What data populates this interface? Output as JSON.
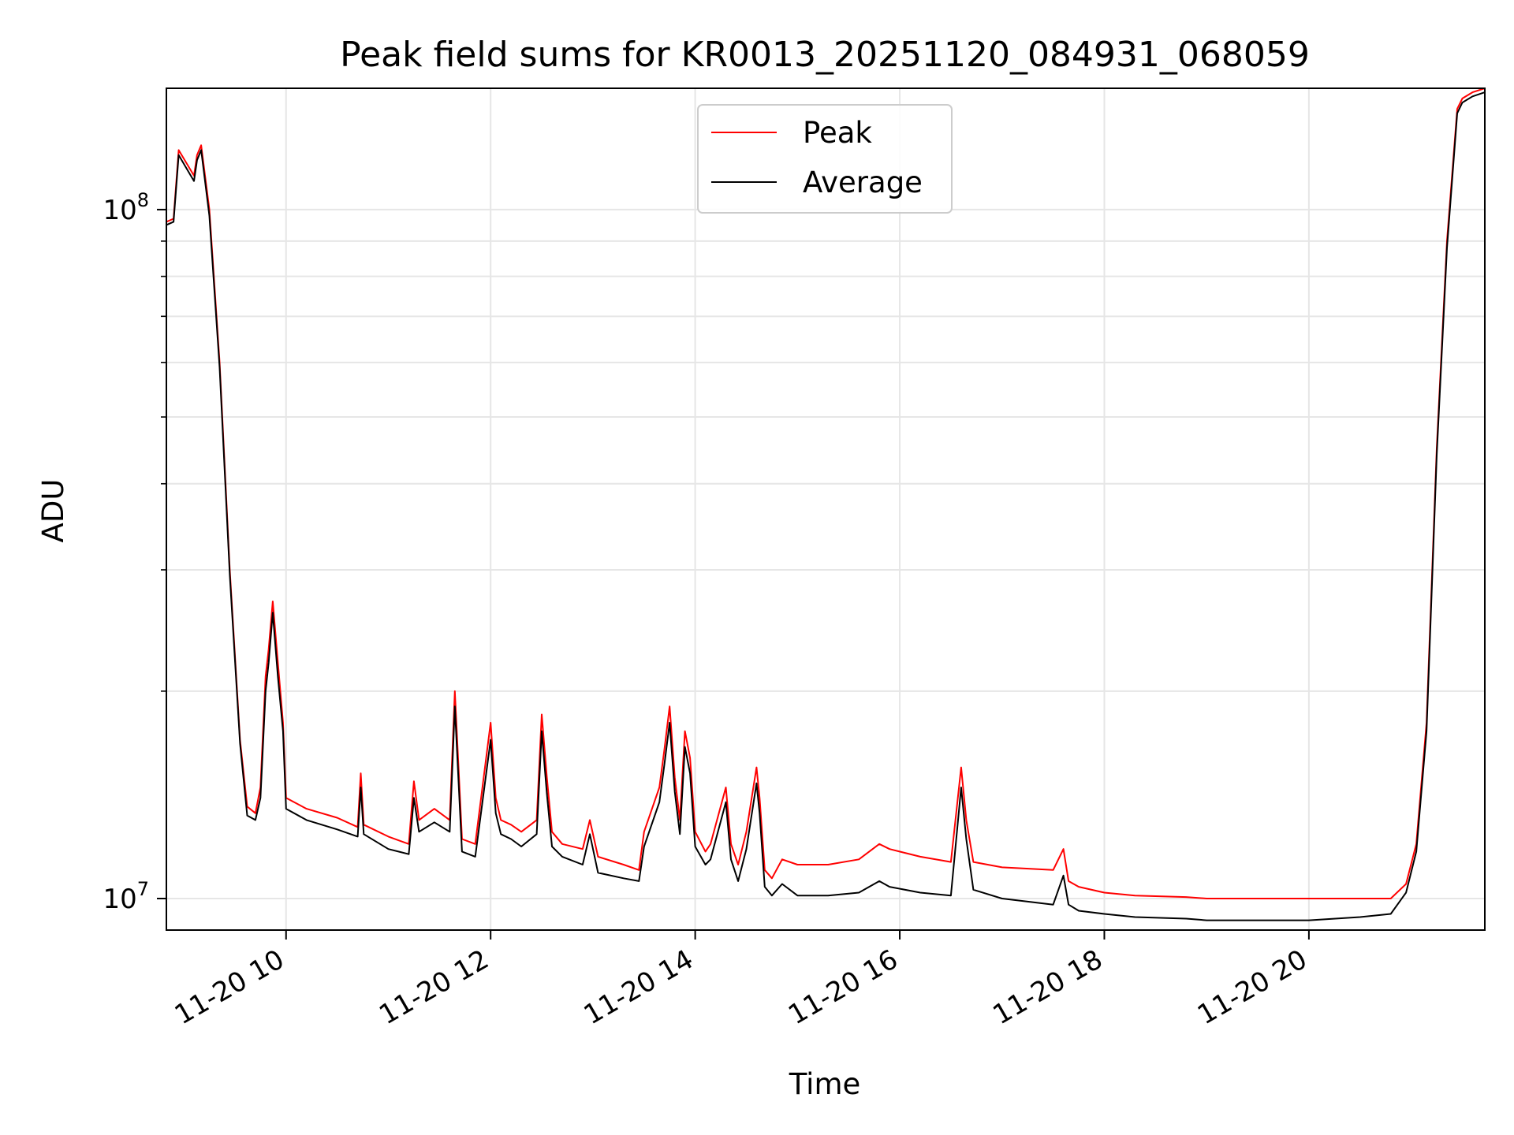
{
  "chart_data": {
    "type": "line",
    "title": "Peak field sums for KR0013_20251120_084931_068059",
    "xlabel": "Time",
    "ylabel": "ADU",
    "yscale": "log",
    "ylim": [
      9000000,
      150000000
    ],
    "xlim_hours": [
      8.83,
      21.72
    ],
    "grid": true,
    "legend_position": "top-center",
    "x_ticks": [
      {
        "hour": 10,
        "label": "11-20 10"
      },
      {
        "hour": 12,
        "label": "11-20 12"
      },
      {
        "hour": 14,
        "label": "11-20 14"
      },
      {
        "hour": 16,
        "label": "11-20 16"
      },
      {
        "hour": 18,
        "label": "11-20 18"
      },
      {
        "hour": 20,
        "label": "11-20 20"
      }
    ],
    "y_major_ticks": [
      {
        "value": 10000000,
        "base": "10",
        "exp": "7"
      },
      {
        "value": 100000000,
        "base": "10",
        "exp": "8"
      }
    ],
    "y_minor_ticks": [
      20000000,
      30000000,
      40000000,
      50000000,
      60000000,
      70000000,
      80000000,
      90000000
    ],
    "series": [
      {
        "name": "Peak",
        "color": "#ff0000",
        "x_hours": [
          8.83,
          8.9,
          8.95,
          9.1,
          9.13,
          9.17,
          9.25,
          9.35,
          9.45,
          9.55,
          9.62,
          9.7,
          9.75,
          9.8,
          9.83,
          9.87,
          9.92,
          9.97,
          10.0,
          10.2,
          10.5,
          10.7,
          10.73,
          10.76,
          11.0,
          11.2,
          11.25,
          11.3,
          11.45,
          11.6,
          11.65,
          11.72,
          11.85,
          12.0,
          12.05,
          12.1,
          12.2,
          12.3,
          12.45,
          12.5,
          12.55,
          12.6,
          12.7,
          12.9,
          12.97,
          13.05,
          13.3,
          13.45,
          13.5,
          13.65,
          13.7,
          13.75,
          13.8,
          13.85,
          13.9,
          13.95,
          14.0,
          14.1,
          14.15,
          14.3,
          14.35,
          14.42,
          14.5,
          14.6,
          14.63,
          14.68,
          14.75,
          14.85,
          15.0,
          15.3,
          15.6,
          15.8,
          15.9,
          16.2,
          16.5,
          16.6,
          16.65,
          16.72,
          17.0,
          17.5,
          17.6,
          17.65,
          17.75,
          18.0,
          18.3,
          18.8,
          19.0,
          19.5,
          20.0,
          20.5,
          20.8,
          20.95,
          21.05,
          21.15,
          21.25,
          21.35,
          21.45,
          21.5,
          21.6,
          21.72
        ],
        "values": [
          96000000,
          97000000,
          122000000,
          112000000,
          120000000,
          124000000,
          100000000,
          60000000,
          30000000,
          17000000,
          13600000,
          13300000,
          14500000,
          21000000,
          23000000,
          27000000,
          22000000,
          18000000,
          14000000,
          13500000,
          13100000,
          12700000,
          15200000,
          12800000,
          12300000,
          12000000,
          14800000,
          13000000,
          13500000,
          13000000,
          20000000,
          12200000,
          12000000,
          18000000,
          14000000,
          13000000,
          12800000,
          12500000,
          13000000,
          18500000,
          15000000,
          12500000,
          12000000,
          11800000,
          13000000,
          11500000,
          11200000,
          11000000,
          12500000,
          14500000,
          16500000,
          19000000,
          15000000,
          13000000,
          17500000,
          16000000,
          12500000,
          11700000,
          12000000,
          14500000,
          12000000,
          11200000,
          12500000,
          15500000,
          14000000,
          11000000,
          10700000,
          11400000,
          11200000,
          11200000,
          11400000,
          12000000,
          11800000,
          11500000,
          11300000,
          15500000,
          13000000,
          11300000,
          11100000,
          11000000,
          11800000,
          10600000,
          10400000,
          10200000,
          10100000,
          10050000,
          10000000,
          10000000,
          10000000,
          10000000,
          10000000,
          10500000,
          12000000,
          18000000,
          45000000,
          90000000,
          140000000,
          145000000,
          148000000,
          150000000
        ]
      },
      {
        "name": "Average",
        "color": "#000000",
        "x_hours": [
          8.83,
          8.9,
          8.95,
          9.1,
          9.13,
          9.17,
          9.25,
          9.35,
          9.45,
          9.55,
          9.62,
          9.7,
          9.75,
          9.8,
          9.83,
          9.87,
          9.92,
          9.97,
          10.0,
          10.2,
          10.5,
          10.7,
          10.73,
          10.76,
          11.0,
          11.2,
          11.25,
          11.3,
          11.45,
          11.6,
          11.65,
          11.72,
          11.85,
          12.0,
          12.05,
          12.1,
          12.2,
          12.3,
          12.45,
          12.5,
          12.55,
          12.6,
          12.7,
          12.9,
          12.97,
          13.05,
          13.3,
          13.45,
          13.5,
          13.65,
          13.7,
          13.75,
          13.8,
          13.85,
          13.9,
          13.95,
          14.0,
          14.1,
          14.15,
          14.3,
          14.35,
          14.42,
          14.5,
          14.6,
          14.63,
          14.68,
          14.75,
          14.85,
          15.0,
          15.3,
          15.6,
          15.8,
          15.9,
          16.2,
          16.5,
          16.6,
          16.65,
          16.72,
          17.0,
          17.5,
          17.6,
          17.65,
          17.75,
          18.0,
          18.3,
          18.8,
          19.0,
          19.5,
          20.0,
          20.5,
          20.8,
          20.95,
          21.05,
          21.15,
          21.25,
          21.35,
          21.45,
          21.5,
          21.6,
          21.72
        ],
        "values": [
          95000000,
          96000000,
          120000000,
          110000000,
          118000000,
          122000000,
          98000000,
          59000000,
          29500000,
          16800000,
          13200000,
          13000000,
          14000000,
          20000000,
          22000000,
          26000000,
          21000000,
          17500000,
          13500000,
          13000000,
          12600000,
          12300000,
          14500000,
          12400000,
          11800000,
          11600000,
          14000000,
          12500000,
          12900000,
          12500000,
          19000000,
          11700000,
          11500000,
          17000000,
          13300000,
          12400000,
          12200000,
          11900000,
          12400000,
          17500000,
          14200000,
          11900000,
          11500000,
          11200000,
          12400000,
          10900000,
          10700000,
          10600000,
          11900000,
          13800000,
          15700000,
          18000000,
          14300000,
          12400000,
          16600000,
          15200000,
          11900000,
          11200000,
          11400000,
          13800000,
          11400000,
          10600000,
          11800000,
          14700000,
          13300000,
          10400000,
          10100000,
          10500000,
          10100000,
          10100000,
          10200000,
          10600000,
          10400000,
          10200000,
          10100000,
          14500000,
          12200000,
          10300000,
          10000000,
          9800000,
          10800000,
          9800000,
          9600000,
          9500000,
          9400000,
          9350000,
          9300000,
          9300000,
          9300000,
          9400000,
          9500000,
          10200000,
          11700000,
          17500000,
          44000000,
          88000000,
          138000000,
          143000000,
          146000000,
          148000000
        ]
      }
    ]
  }
}
